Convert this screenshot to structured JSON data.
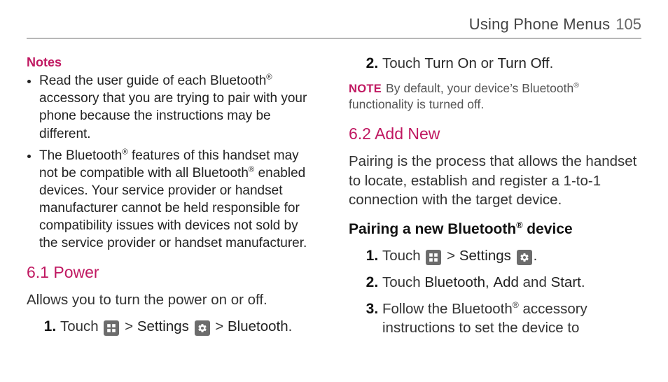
{
  "colors": {
    "accent": "#c01861",
    "text": "#333333",
    "icon_bg": "#6c6c6c",
    "rule": "#666666",
    "background": "#ffffff"
  },
  "header": {
    "section_title": "Using Phone Menus",
    "page_number": "105"
  },
  "left": {
    "notes_label": "Notes",
    "note_items": [
      "Read the user guide of each Bluetooth® accessory that you are trying to pair with your phone because the instructions may be different.",
      "The Bluetooth® features of this handset may not be compatible with all Bluetooth® enabled devices. Your service provider or handset manufacturer cannot be held responsible for compatibility issues with devices not sold by the service provider or handset manufacturer."
    ],
    "section_6_1": {
      "heading": "6.1 Power",
      "description": "Allows you to turn the power on or off.",
      "step1": {
        "touch": "Touch",
        "gt1": ">",
        "settings": "Settings",
        "gt2": ">",
        "bluetooth": "Bluetooth",
        "period": "."
      }
    }
  },
  "right": {
    "step2": {
      "touch": "Touch",
      "turn_on": "Turn On",
      "or": "or",
      "turn_off": "Turn Off",
      "period": "."
    },
    "note_word": "NOTE",
    "note_text": "By default, your device’s Bluetooth® functionality is turned off.",
    "section_6_2": {
      "heading": "6.2 Add New",
      "description": "Pairing is the process that allows the handset to locate, establish and register a 1-to-1 connection with the target device.",
      "bold_line": "Pairing a new Bluetooth® device",
      "steps": {
        "s1": {
          "touch": "Touch",
          "gt": ">",
          "settings": "Settings",
          "period": "."
        },
        "s2": {
          "touch": "Touch",
          "bluetooth": "Bluetooth",
          "comma": ",",
          "add": "Add",
          "and": "and",
          "start": "Start",
          "period": "."
        },
        "s3": "Follow the Bluetooth® accessory instructions to set the device to"
      }
    }
  }
}
